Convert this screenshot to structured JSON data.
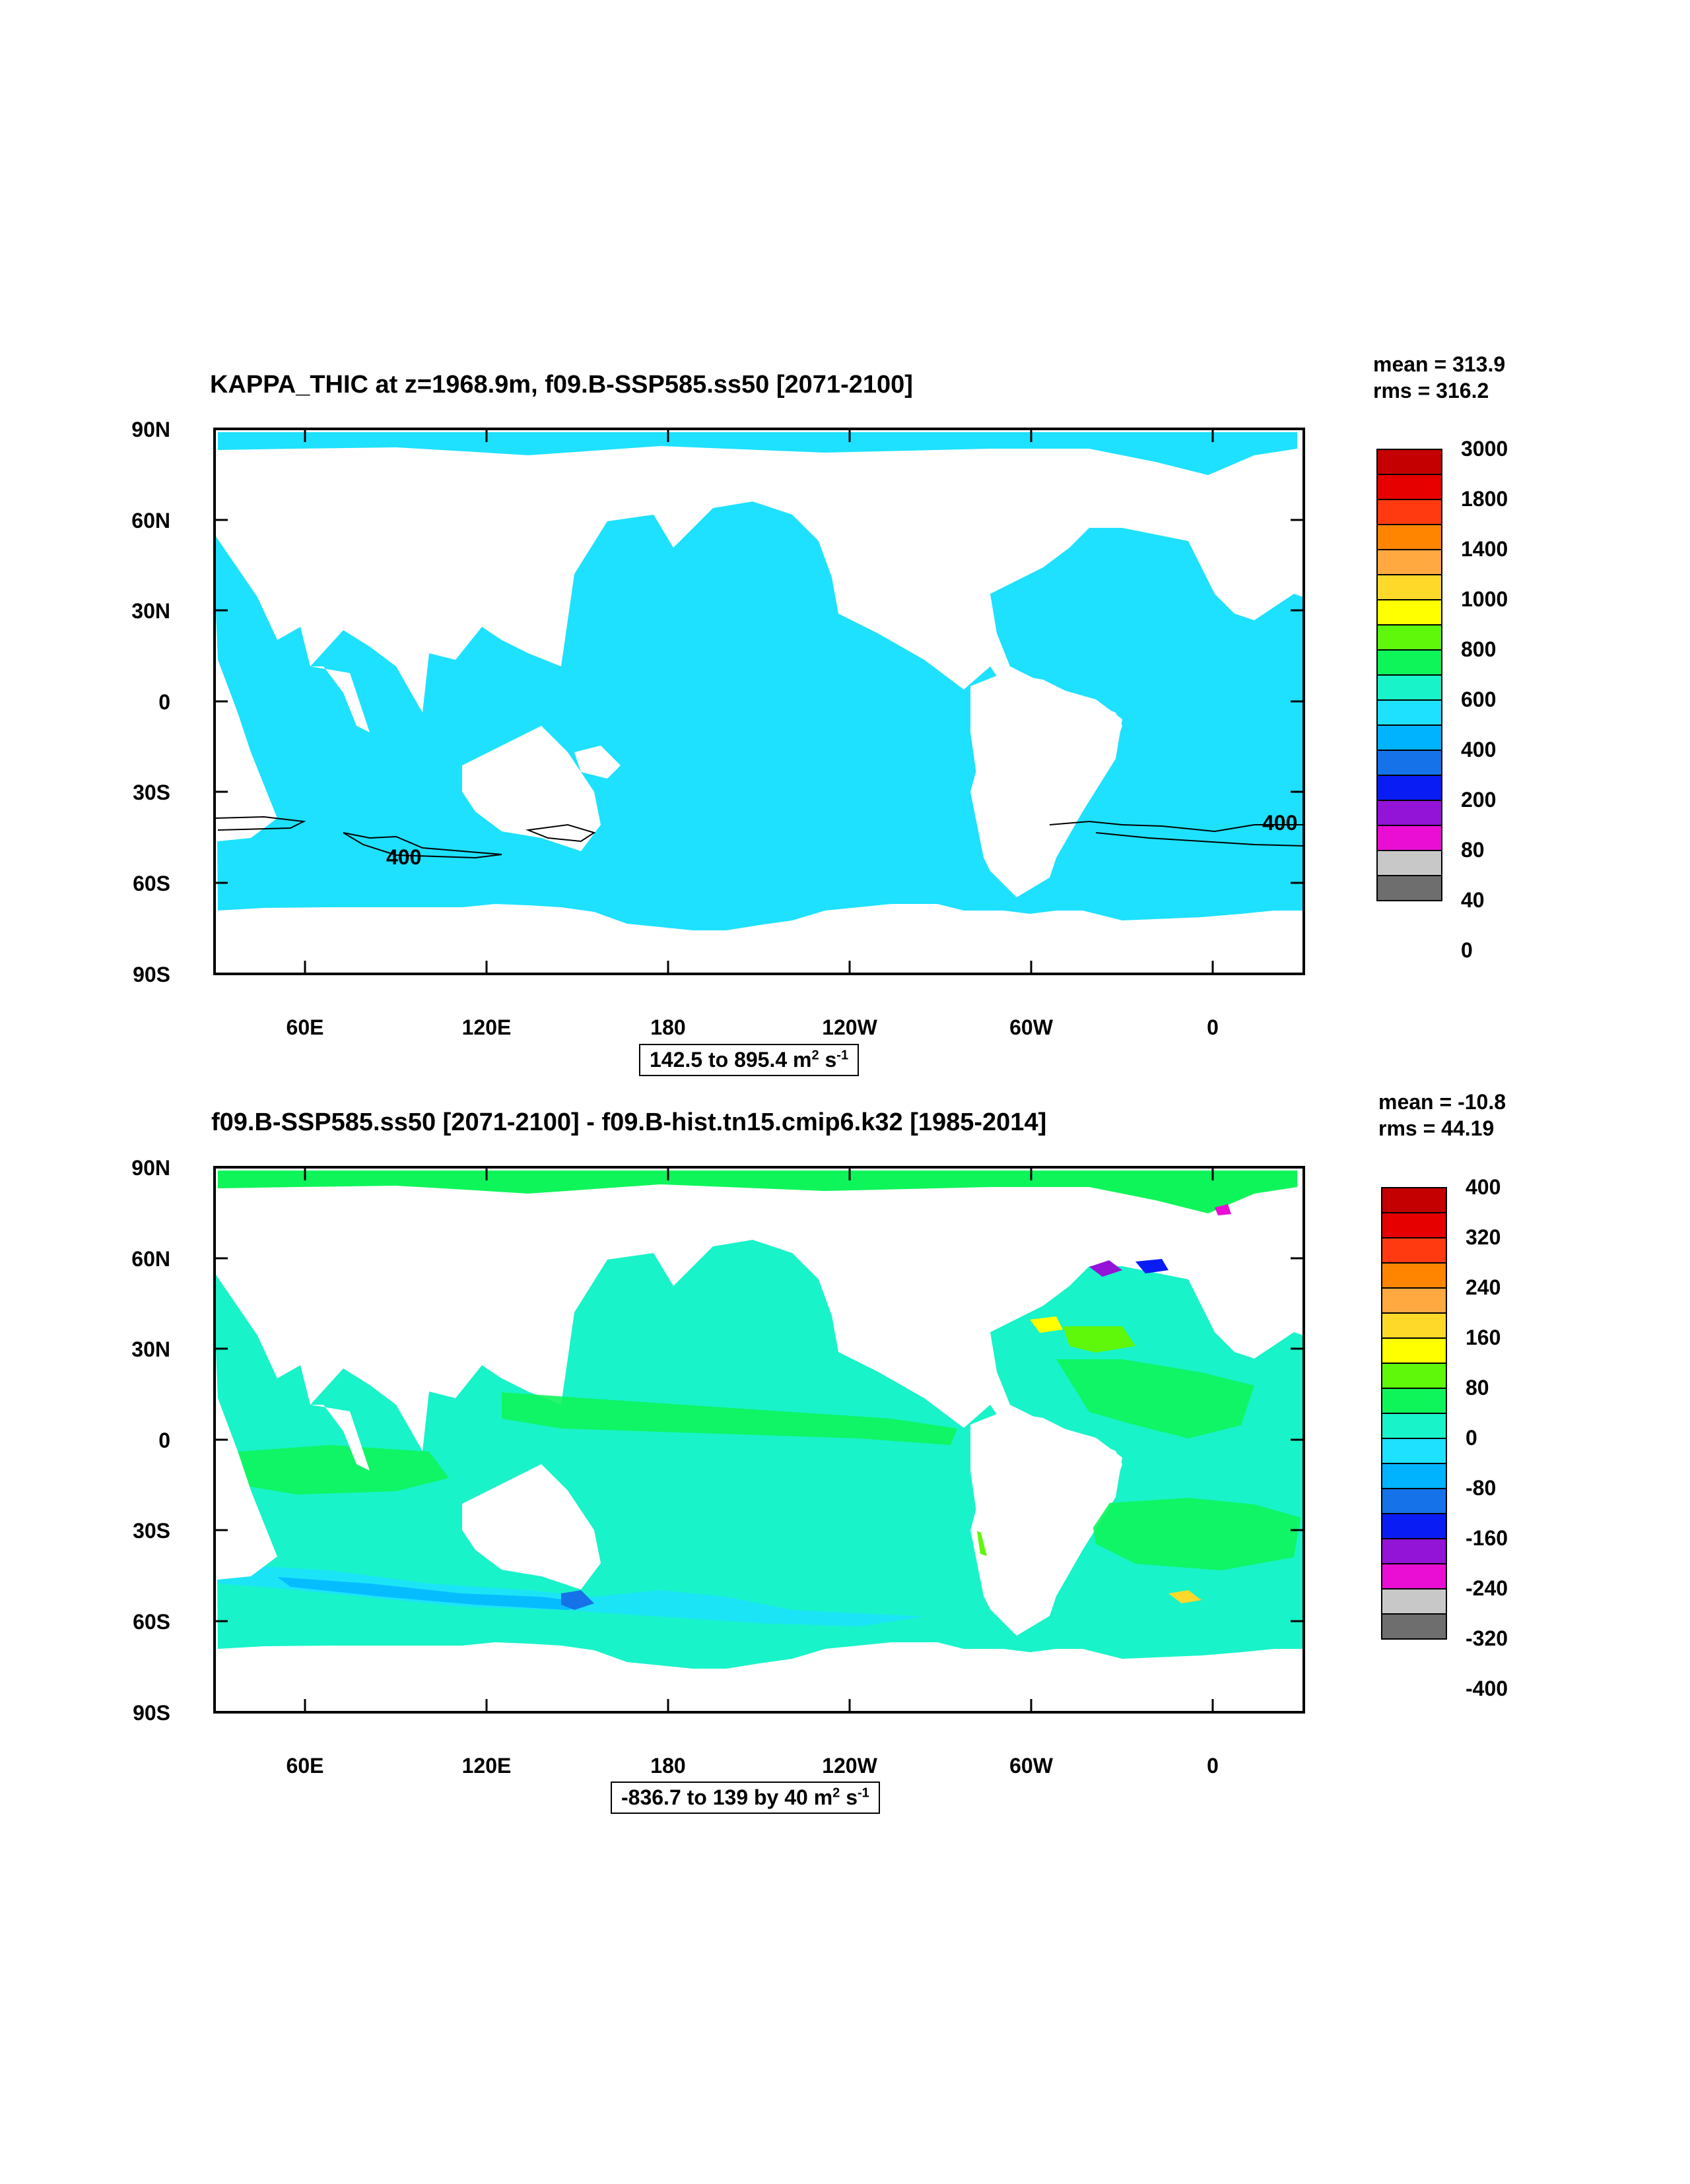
{
  "panels": [
    {
      "title": "KAPPA_THIC at z=1968.9m, f09.B-SSP585.ss50 [2071-2100]",
      "mean_text": "mean = 313.9",
      "rms_text": "rms = 316.2",
      "range_text": "142.5 to 895.4 m",
      "range_sup1": "2",
      "range_mid": " s",
      "range_sup2": "-1",
      "contour_label": "400",
      "colorbar_labels": [
        "3000",
        "1800",
        "1400",
        "1000",
        "800",
        "600",
        "400",
        "200",
        "80",
        "40",
        "0"
      ],
      "ocean_fill": "#1de1ff"
    },
    {
      "title": "f09.B-SSP585.ss50 [2071-2100] - f09.B-hist.tn15.cmip6.k32 [1985-2014]",
      "mean_text": "mean = -10.8",
      "rms_text": "rms = 44.19",
      "range_text": "-836.7 to 139 by 40 m",
      "range_sup1": "2",
      "range_mid": " s",
      "range_sup2": "-1",
      "colorbar_labels": [
        "400",
        "320",
        "240",
        "160",
        "80",
        "0",
        "-80",
        "-160",
        "-240",
        "-320",
        "-400"
      ],
      "ocean_fill": "#18f3c9"
    }
  ],
  "axes": {
    "y_ticks": [
      "90N",
      "60N",
      "30N",
      "0",
      "30S",
      "60S",
      "90S"
    ],
    "x_ticks": [
      "60E",
      "120E",
      "180",
      "120W",
      "60W",
      "0"
    ]
  },
  "colorbar_colors": [
    "#c40000",
    "#e60000",
    "#ff3a10",
    "#ff8500",
    "#ffa940",
    "#ffd92a",
    "#ffff00",
    "#5ff70a",
    "#0ef55a",
    "#18f3c9",
    "#1de1ff",
    "#00b3ff",
    "#1672e8",
    "#0a1cf4",
    "#9313d6",
    "#ea0ed4",
    "#c8c8c8",
    "#6e6e6e"
  ]
}
